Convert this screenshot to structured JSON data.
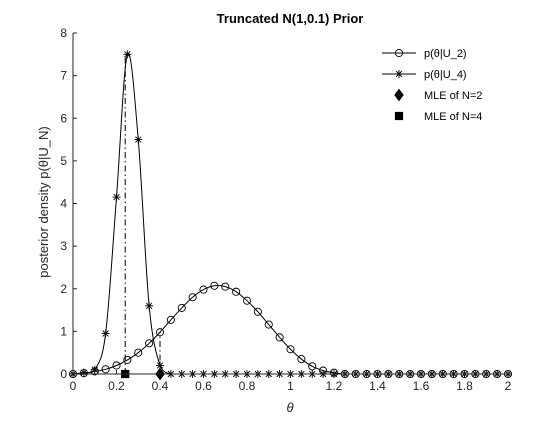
{
  "chart_data": {
    "type": "line",
    "title": "Truncated N(1,0.1) Prior",
    "xlabel": "θ",
    "ylabel": "posterior density p(θ|U_N)",
    "xlim": [
      0,
      2
    ],
    "ylim": [
      0,
      8
    ],
    "xticks": [
      "0",
      "0.2",
      "0.4",
      "0.6",
      "0.8",
      "1",
      "1.2",
      "1.4",
      "1.6",
      "1.8",
      "2"
    ],
    "yticks": [
      "0",
      "1",
      "2",
      "3",
      "4",
      "5",
      "6",
      "7",
      "8"
    ],
    "grid": false,
    "legend_position": "top-right",
    "series": [
      {
        "name": "p(θ|U_2)",
        "marker": "circle",
        "x": [
          0,
          0.05,
          0.1,
          0.15,
          0.2,
          0.25,
          0.3,
          0.35,
          0.4,
          0.45,
          0.5,
          0.55,
          0.6,
          0.65,
          0.7,
          0.75,
          0.8,
          0.85,
          0.9,
          0.95,
          1.0,
          1.05,
          1.1,
          1.15,
          1.2,
          1.25,
          1.3,
          1.35,
          1.4,
          1.45,
          1.5,
          1.55,
          1.6,
          1.65,
          1.7,
          1.75,
          1.8,
          1.85,
          1.9,
          1.95,
          2.0
        ],
        "y": [
          0.0,
          0.02,
          0.06,
          0.11,
          0.2,
          0.33,
          0.5,
          0.72,
          0.98,
          1.27,
          1.55,
          1.8,
          1.98,
          2.07,
          2.05,
          1.93,
          1.72,
          1.46,
          1.16,
          0.86,
          0.58,
          0.35,
          0.18,
          0.08,
          0.03,
          0.0,
          0.0,
          0.0,
          0.0,
          0.0,
          0.0,
          0.0,
          0.0,
          0.0,
          0.0,
          0.0,
          0.0,
          0.0,
          0.0,
          0.0,
          0.0
        ]
      },
      {
        "name": "p(θ|U_4)",
        "marker": "asterisk",
        "x": [
          0,
          0.05,
          0.1,
          0.15,
          0.2,
          0.25,
          0.3,
          0.35,
          0.4,
          0.45,
          0.5,
          0.55,
          0.6,
          0.65,
          0.7,
          0.75,
          0.8,
          0.85,
          0.9,
          0.95,
          1.0,
          1.05,
          1.1,
          1.15,
          1.2,
          1.25,
          1.3,
          1.35,
          1.4,
          1.45,
          1.5,
          1.55,
          1.6,
          1.65,
          1.7,
          1.75,
          1.8,
          1.85,
          1.9,
          1.95,
          2.0
        ],
        "y": [
          0.0,
          0.03,
          0.1,
          0.95,
          4.15,
          7.5,
          5.5,
          1.6,
          0.2,
          0.0,
          0.0,
          0.0,
          0.0,
          0.0,
          0.0,
          0.0,
          0.0,
          0.0,
          0.0,
          0.0,
          0.0,
          0.0,
          0.0,
          0.0,
          0.0,
          0.0,
          0.0,
          0.0,
          0.0,
          0.0,
          0.0,
          0.0,
          0.0,
          0.0,
          0.0,
          0.0,
          0.0,
          0.0,
          0.0,
          0.0,
          0.0
        ]
      },
      {
        "name": "MLE of N=2",
        "marker": "diamond",
        "x": [
          0.4
        ],
        "y": [
          0
        ]
      },
      {
        "name": "MLE of N=4",
        "marker": "square",
        "x": [
          0.24
        ],
        "y": [
          0
        ]
      }
    ],
    "vertical_lines": [
      {
        "x": 0.24,
        "ymax": 7.5,
        "style": "dash-dot"
      },
      {
        "x": 0.4,
        "ymax": 0.98,
        "style": "dash-dot"
      }
    ]
  }
}
